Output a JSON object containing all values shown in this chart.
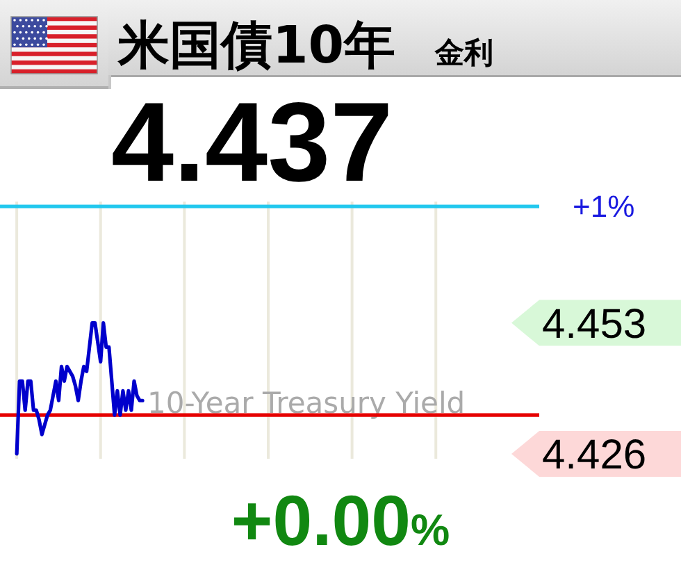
{
  "chart_data": {
    "type": "line",
    "title": "米国債10年",
    "subtitle": "金利",
    "annotations": [
      "4.437",
      "10-Year Treasury Yield",
      "+0.00%",
      "+1%"
    ],
    "categories": [
      null,
      null,
      null,
      null,
      null,
      null,
      null,
      null,
      null,
      null,
      null,
      null,
      null,
      null,
      null,
      null,
      null,
      null,
      null,
      null,
      null,
      null,
      null,
      null,
      null,
      null,
      null,
      null,
      null,
      null,
      null,
      null,
      null,
      null,
      null,
      null,
      null,
      null,
      null,
      null,
      null,
      null,
      null,
      null,
      null,
      null,
      null,
      null,
      null,
      null,
      null,
      null,
      null,
      null,
      null,
      null,
      null,
      null,
      null,
      null,
      null,
      null,
      null,
      null,
      null,
      null,
      null,
      null,
      null,
      null,
      null,
      null,
      null,
      null,
      null,
      null,
      null,
      null,
      null,
      null,
      null,
      null,
      null,
      null,
      null,
      null,
      null,
      null,
      null,
      null,
      null,
      null,
      null,
      null,
      null,
      null,
      null,
      null,
      null,
      null,
      null,
      null,
      null,
      null,
      null,
      null,
      null,
      null,
      null,
      null,
      null,
      null,
      null,
      null,
      null,
      null,
      null,
      null,
      null,
      null,
      null,
      null,
      null,
      null,
      null,
      null,
      null,
      null,
      null,
      null,
      null,
      null,
      null,
      null,
      null,
      null,
      null,
      null,
      null,
      null,
      null,
      null,
      null,
      null,
      null,
      null,
      null,
      null,
      null,
      null,
      null,
      null,
      null,
      null,
      null,
      null,
      null,
      null,
      null,
      null,
      null,
      null,
      null,
      null,
      null,
      null,
      null,
      null,
      null,
      null,
      null,
      null,
      null,
      null,
      null,
      null,
      null,
      null,
      null,
      null,
      null,
      null,
      null,
      null,
      null,
      null,
      null,
      null,
      null,
      null,
      null,
      null,
      null,
      null
    ],
    "values": [
      null,
      null,
      null,
      null,
      null,
      null,
      4.426,
      4.441,
      4.441,
      4.435,
      4.441,
      4.441,
      4.435,
      4.435,
      4.433,
      4.43,
      4.432,
      4.434,
      4.435,
      4.438,
      4.441,
      4.437,
      4.444,
      4.441,
      4.444,
      4.443,
      4.442,
      4.44,
      4.437,
      4.441,
      4.444,
      4.443,
      4.448,
      4.453,
      4.453,
      4.449,
      4.445,
      4.453,
      4.448,
      4.448,
      4.441,
      4.434,
      4.439,
      4.434,
      4.439,
      4.435,
      4.439,
      4.435,
      4.441,
      4.438,
      4.437,
      4.437,
      null,
      null,
      null,
      null,
      null,
      null,
      null,
      null,
      null,
      null,
      null,
      null,
      null,
      null,
      null,
      null,
      null,
      null,
      null,
      null,
      null,
      null,
      null,
      null,
      null,
      null,
      null,
      null,
      null,
      null,
      null,
      null,
      null,
      null,
      null,
      null,
      null,
      null,
      null,
      null,
      null,
      null,
      null,
      null,
      null,
      null,
      null,
      null,
      null,
      null,
      null,
      null,
      null,
      null,
      null,
      null,
      null,
      null,
      null,
      null,
      null,
      null,
      null,
      null,
      null,
      null,
      null,
      null,
      null,
      null,
      null,
      null,
      null,
      null,
      null,
      null,
      null,
      null,
      null,
      null,
      null,
      null,
      null,
      null,
      null,
      null,
      null,
      null,
      null,
      null,
      null,
      null,
      null,
      null,
      null,
      null,
      null,
      null,
      null,
      null,
      null,
      null,
      null,
      null,
      null,
      null,
      null,
      null,
      null,
      null,
      null,
      null,
      null,
      null,
      null,
      null,
      null,
      null,
      null,
      null,
      null,
      null,
      null,
      null,
      null,
      null,
      null,
      null,
      null,
      null,
      null,
      null,
      null,
      null,
      null,
      null,
      null,
      null,
      null,
      null,
      null,
      null
    ],
    "color": "#0000cc",
    "ylim": [
      4.425,
      4.478
    ],
    "yticks": [
      4.426,
      4.453
    ],
    "ref_lines": [
      {
        "axis": "y",
        "value": 4.477,
        "color": "#22c8ee"
      },
      {
        "axis": "y",
        "value": 4.434,
        "color": "#e60000"
      }
    ],
    "grid": "x",
    "tick_labels": "y"
  }
}
